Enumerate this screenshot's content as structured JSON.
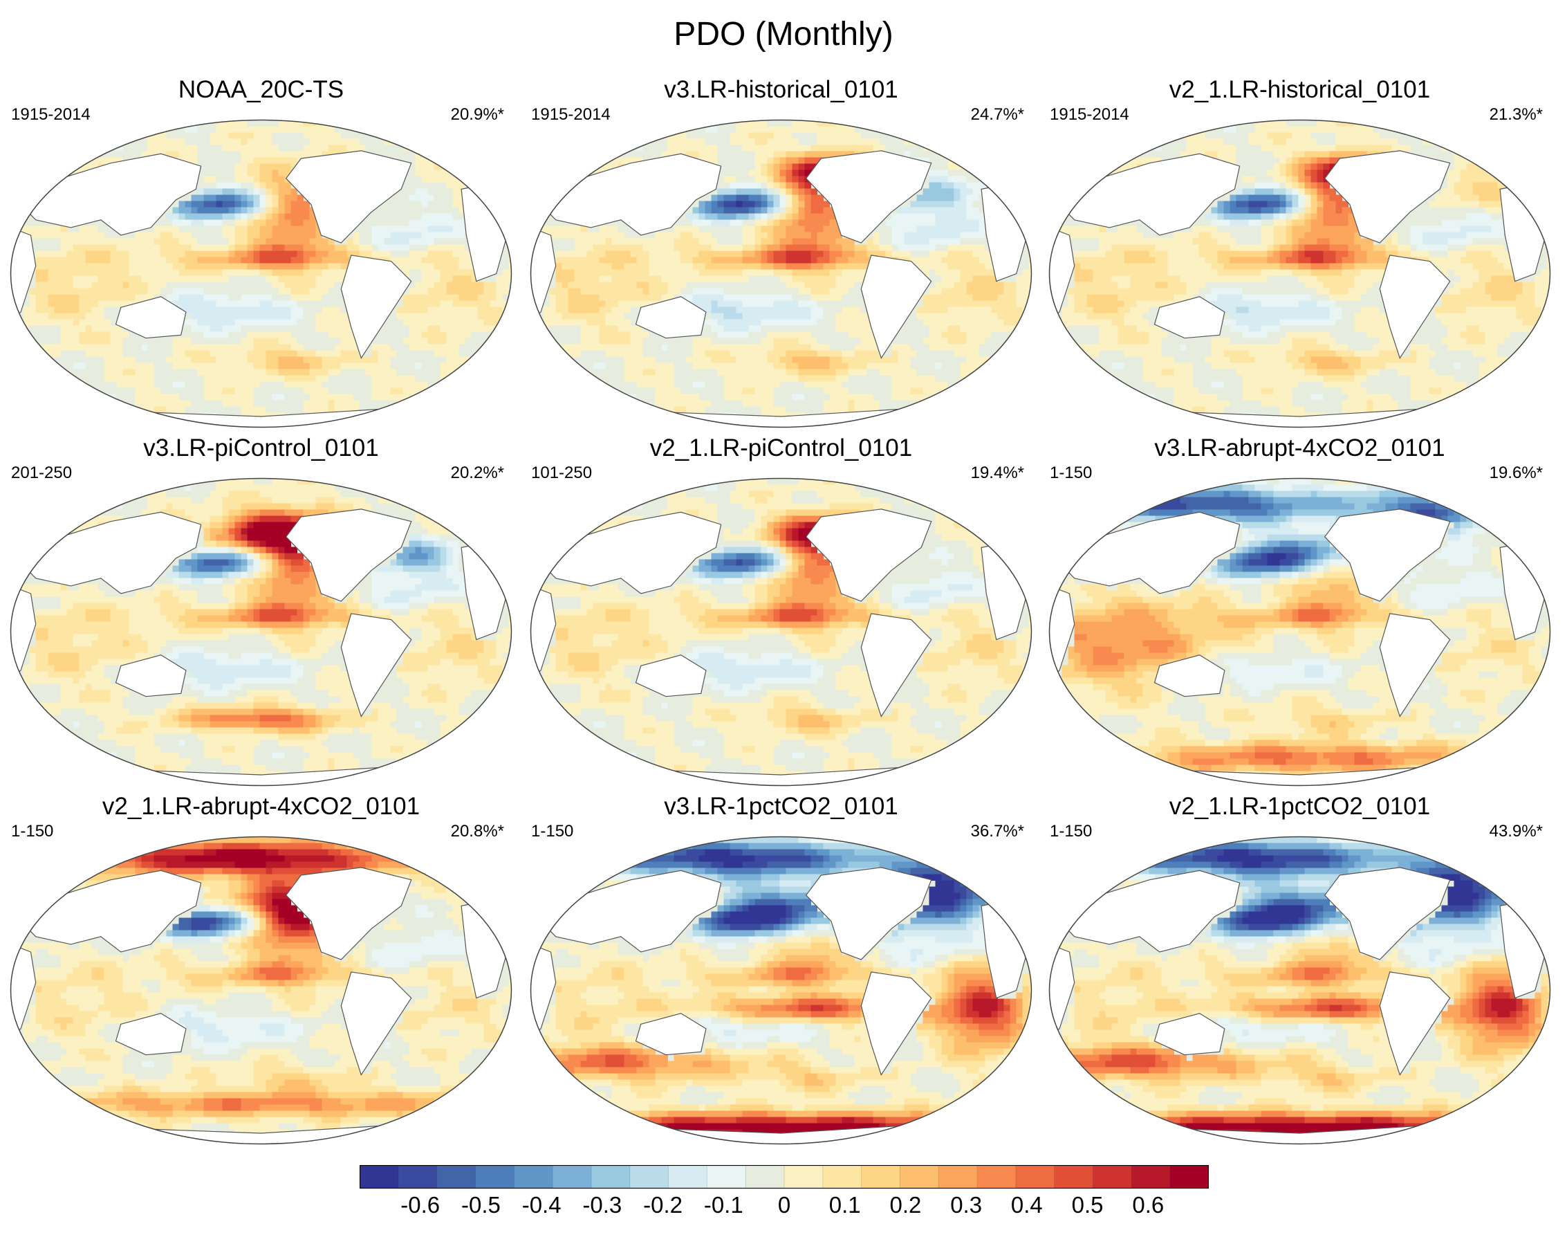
{
  "title": "PDO (Monthly)",
  "chart_data": {
    "type": "heatmap",
    "title": "PDO (Monthly)",
    "description_kind": "regression maps of SST onto PDO index (Robinson projection)",
    "panels": [
      {
        "name": "NOAA_20C-TS",
        "period": "1915-2014",
        "variance": "20.9%*"
      },
      {
        "name": "v3.LR-historical_0101",
        "period": "1915-2014",
        "variance": "24.7%*"
      },
      {
        "name": "v2_1.LR-historical_0101",
        "period": "1915-2014",
        "variance": "21.3%*"
      },
      {
        "name": "v3.LR-piControl_0101",
        "period": "201-250",
        "variance": "20.2%*"
      },
      {
        "name": "v2_1.LR-piControl_0101",
        "period": "101-250",
        "variance": "19.4%*"
      },
      {
        "name": "v3.LR-abrupt-4xCO2_0101",
        "period": "1-150",
        "variance": "19.6%*"
      },
      {
        "name": "v2_1.LR-abrupt-4xCO2_0101",
        "period": "1-150",
        "variance": "20.8%*"
      },
      {
        "name": "v3.LR-1pctCO2_0101",
        "period": "1-150",
        "variance": "36.7%*"
      },
      {
        "name": "v2_1.LR-1pctCO2_0101",
        "period": "1-150",
        "variance": "43.9%*"
      }
    ],
    "colorbar": {
      "range": [
        -0.7,
        0.7
      ],
      "tick_labels": [
        "-0.6",
        "-0.5",
        "-0.4",
        "-0.3",
        "-0.2",
        "-0.1",
        "0",
        "0.1",
        "0.2",
        "0.3",
        "0.4",
        "0.5",
        "0.6"
      ],
      "colors": [
        "#313695",
        "#3a4b9f",
        "#4464aa",
        "#4f7fbb",
        "#6197c8",
        "#7cb0d6",
        "#99c8e1",
        "#b9dbea",
        "#d6ecf2",
        "#e9f5f4",
        "#e6edde",
        "#fbf1c3",
        "#fde6a4",
        "#fed585",
        "#fdbf6d",
        "#fca55d",
        "#f88a4f",
        "#ef6c43",
        "#e14f37",
        "#cf3330",
        "#b8192a",
        "#a50026"
      ]
    },
    "land_color": "#ffffff",
    "ocean_neutral_color": "#e6edde"
  }
}
